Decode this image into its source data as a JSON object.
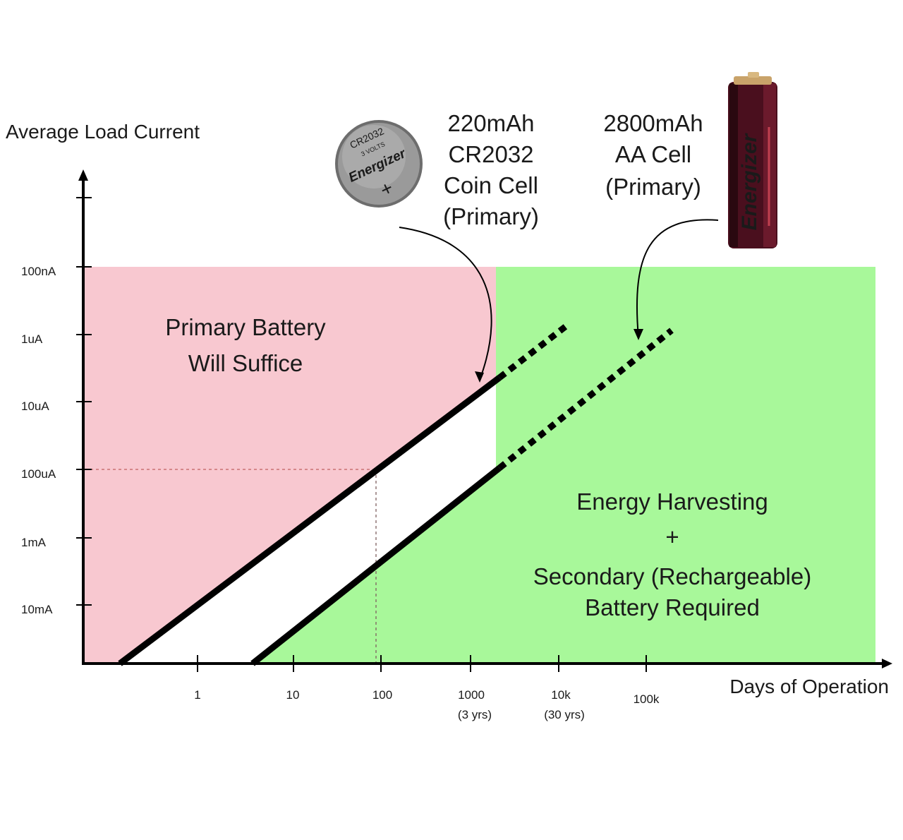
{
  "chart_data": {
    "type": "line",
    "ylabel": "Average Load Current",
    "xlabel": "Days of Operation",
    "y_scale": "log",
    "x_scale": "log",
    "y_ticks": [
      "100nA",
      "1uA",
      "10uA",
      "100uA",
      "1mA",
      "10mA"
    ],
    "x_ticks": [
      {
        "label": "1",
        "sub": ""
      },
      {
        "label": "10",
        "sub": ""
      },
      {
        "label": "100",
        "sub": ""
      },
      {
        "label": "1000",
        "sub": "(3 yrs)"
      },
      {
        "label": "10k",
        "sub": "(30 yrs)"
      },
      {
        "label": "100k",
        "sub": ""
      }
    ],
    "regions": {
      "primary": {
        "line1": "Primary Battery",
        "line2": "Will Suffice",
        "color": "#f8c8d0"
      },
      "harvest": {
        "line1": "Energy Harvesting",
        "line2": "+",
        "line3": "Secondary (Rechargeable)",
        "line4": "Battery Required",
        "color": "#a8f89a"
      }
    },
    "series": [
      {
        "name": "220mAh CR2032 Coin Cell (Primary)",
        "capacity_mAh": 220
      },
      {
        "name": "2800mAh AA Cell (Primary)",
        "capacity_mAh": 2800
      }
    ],
    "annotations": {
      "coin": [
        "220mAh",
        "CR2032",
        "Coin Cell",
        "(Primary)"
      ],
      "aa": [
        "2800mAh",
        "AA Cell",
        "(Primary)"
      ],
      "coin_image_text": [
        "CR2032",
        "3 VOLTS",
        "Energizer"
      ],
      "aa_image_text": [
        "Energizer"
      ]
    },
    "reference": {
      "x": "100",
      "y": "100uA"
    }
  },
  "colors": {
    "axis": "#000000",
    "pink": "#f8c8d0",
    "green": "#a8f89a"
  }
}
